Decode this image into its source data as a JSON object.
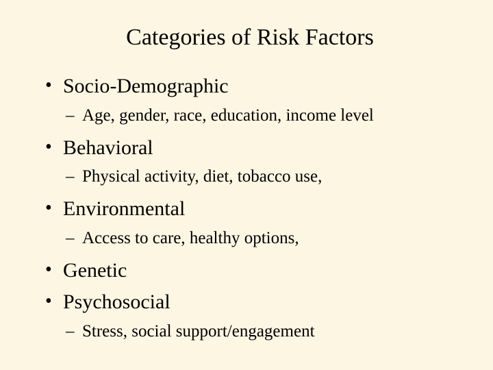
{
  "title": "Categories of Risk Factors",
  "items": [
    {
      "label": "Socio-Demographic",
      "sub": "Age, gender, race, education, income level"
    },
    {
      "label": "Behavioral",
      "sub": "Physical activity, diet, tobacco use,"
    },
    {
      "label": "Environmental",
      "sub": "Access to care, healthy options,"
    },
    {
      "label": "Genetic",
      "sub": null
    },
    {
      "label": "Psychosocial",
      "sub": "Stress, social support/engagement"
    }
  ],
  "colors": {
    "background": "#fdf6e3",
    "text": "#000000"
  },
  "typography": {
    "family": "Times New Roman",
    "title_fontsize": 34,
    "l1_fontsize": 30,
    "l2_fontsize": 25
  }
}
